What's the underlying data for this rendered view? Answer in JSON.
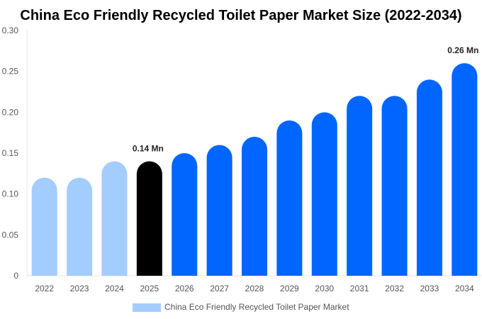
{
  "chart_data": {
    "type": "bar",
    "title": "China Eco Friendly Recycled Toilet Paper Market Size (2022-2034)",
    "categories": [
      "2022",
      "2023",
      "2024",
      "2025",
      "2026",
      "2027",
      "2028",
      "2029",
      "2030",
      "2031",
      "2032",
      "2033",
      "2034"
    ],
    "series": [
      {
        "name": "China Eco Friendly Recycled Toilet Paper Market",
        "values": [
          0.12,
          0.12,
          0.14,
          0.14,
          0.15,
          0.16,
          0.17,
          0.19,
          0.2,
          0.22,
          0.22,
          0.24,
          0.26
        ]
      }
    ],
    "bar_colors": [
      "#a3cdff",
      "#a3cdff",
      "#a3cdff",
      "#000000",
      "#0066ff",
      "#0066ff",
      "#0066ff",
      "#0066ff",
      "#0066ff",
      "#0066ff",
      "#0066ff",
      "#0066ff",
      "#0066ff"
    ],
    "legend_color": "#a3cdff",
    "data_labels": [
      {
        "category": "2025",
        "text": "0.14 Mn"
      },
      {
        "category": "2034",
        "text": "0.26 Mn"
      }
    ],
    "yticks": [
      "0",
      "0.05",
      "0.10",
      "0.15",
      "0.20",
      "0.25",
      "0.30"
    ],
    "ylim": [
      0,
      0.3
    ],
    "xlabel": "",
    "ylabel": "",
    "grid": false,
    "legend_position": "bottom"
  }
}
